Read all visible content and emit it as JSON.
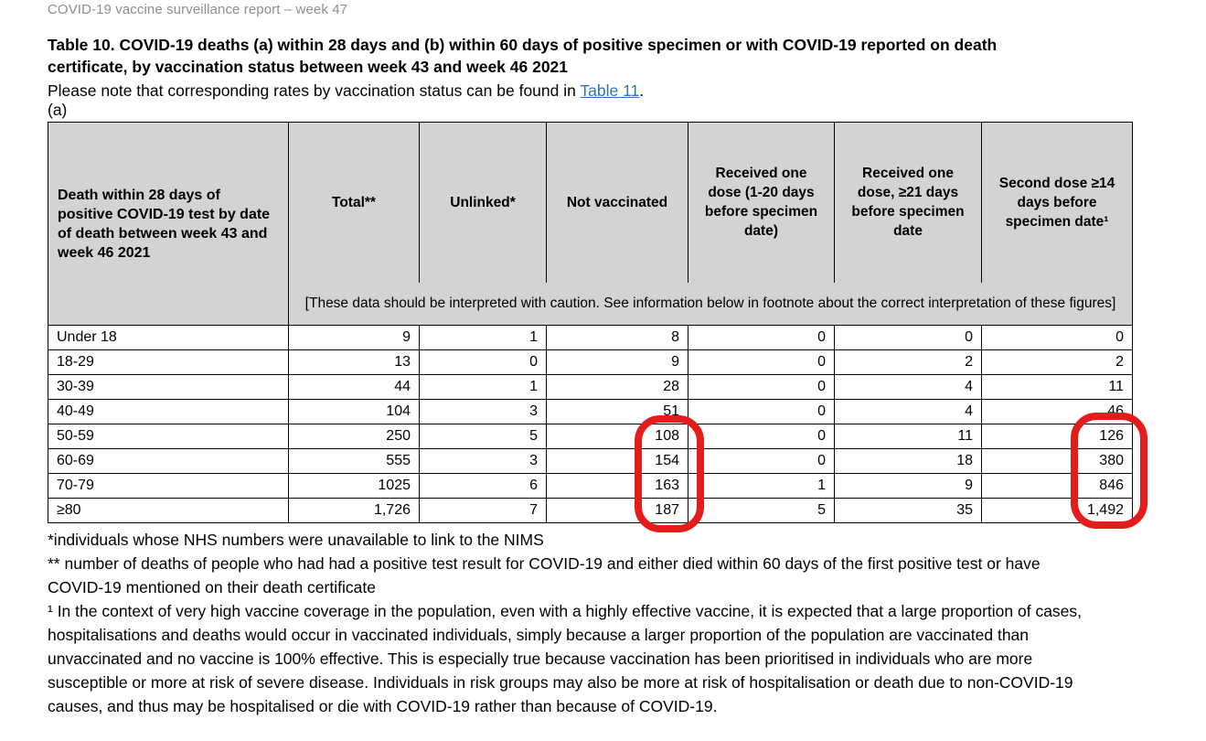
{
  "page": {
    "doc_header": "COVID-19 vaccine surveillance report – week 47",
    "title": "Table 10. COVID-19 deaths (a) within 28 days and (b) within 60 days of positive specimen or with COVID-19 reported on death certificate, by vaccination status between week 43 and week 46 2021",
    "note_prefix": "Please note that corresponding rates by vaccination status can be found in ",
    "note_link": "Table 11",
    "note_suffix": ".",
    "section_label": "(a)"
  },
  "table": {
    "row_header": "Death within 28 days of positive COVID-19 test by date of death between week 43 and week 46 2021",
    "columns": [
      "Total**",
      "Unlinked*",
      "Not vaccinated",
      "Received one dose (1-20 days before specimen date)",
      "Received one dose, ≥21 days before specimen date",
      "Second dose ≥14 days before specimen date¹"
    ],
    "caution": "[These data should be interpreted with caution. See information below in footnote about the correct interpretation of these figures]",
    "rows": [
      {
        "label": "Under 18",
        "values": [
          "9",
          "1",
          "8",
          "0",
          "0",
          "0"
        ]
      },
      {
        "label": "18-29",
        "values": [
          "13",
          "0",
          "9",
          "0",
          "2",
          "2"
        ]
      },
      {
        "label": "30-39",
        "values": [
          "44",
          "1",
          "28",
          "0",
          "4",
          "11"
        ]
      },
      {
        "label": "40-49",
        "values": [
          "104",
          "3",
          "51",
          "0",
          "4",
          "46"
        ]
      },
      {
        "label": "50-59",
        "values": [
          "250",
          "5",
          "108",
          "0",
          "11",
          "126"
        ]
      },
      {
        "label": "60-69",
        "values": [
          "555",
          "3",
          "154",
          "0",
          "18",
          "380"
        ]
      },
      {
        "label": "70-79",
        "values": [
          "1025",
          "6",
          "163",
          "1",
          "9",
          "846"
        ]
      },
      {
        "label": "≥80",
        "values": [
          "1,726",
          "7",
          "187",
          "5",
          "35",
          "1,492"
        ]
      }
    ]
  },
  "annotations": {
    "highlight_color": "#e41c1c",
    "circles": [
      {
        "column": "Not vaccinated",
        "circled_values": [
          "108",
          "154",
          "163",
          "187"
        ]
      },
      {
        "column": "Second dose ≥14 days before specimen date",
        "circled_values": [
          "126",
          "380",
          "846",
          "1,492"
        ]
      }
    ]
  },
  "footnotes": {
    "unlinked": "*individuals whose NHS numbers were unavailable to link to the NIMS",
    "total": "** number of deaths of people who had had a positive test result for COVID-19 and either died within 60 days of the first positive test or have COVID-19 mentioned on their death certificate",
    "interpretation": "¹ In the context of very high vaccine coverage in the population, even with a highly effective vaccine, it is expected that a large proportion of cases, hospitalisations and deaths would occur in vaccinated individuals, simply because a larger proportion of the population are vaccinated than unvaccinated and no vaccine is 100% effective. This is especially true because vaccination has been prioritised in individuals who are more susceptible or more at risk of severe disease. Individuals in risk groups may also be more at risk of hospitalisation or death due to non-COVID-19 causes, and thus may be hospitalised or die with COVID-19 rather than because of COVID-19."
  },
  "colors": {
    "header_bg": "#d3d3d3",
    "link_blue": "#2e74b5",
    "muted_header_gray": "#8f8f8f"
  }
}
